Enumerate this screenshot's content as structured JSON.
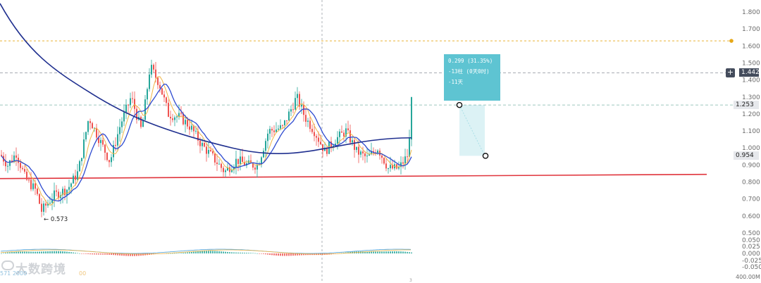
{
  "chart_data": {
    "type": "candlestick",
    "y_axis": {
      "range": [
        0.4,
        1.85
      ],
      "ticks": [
        "1.800",
        "1.700",
        "1.600",
        "1.500",
        "1.400",
        "1.300",
        "1.200",
        "1.100",
        "1.000",
        "0.900",
        "0.800",
        "0.700",
        "0.600",
        "0.500"
      ]
    },
    "macd_axis": {
      "ticks": [
        "0.050",
        "0.025",
        "0.000",
        "-0.025",
        "-0.050"
      ]
    },
    "volume_label": "400.00M",
    "price_tags": {
      "current_hline": "1.442",
      "measure_top": "1.253",
      "measure_bottom": "0.954"
    },
    "alert_level": 1.63,
    "support_line": {
      "from": 0.82,
      "to": 0.845
    },
    "low_marker": "← 0.573",
    "measure_tool": {
      "line1": "0.299 (31.35%)",
      "line2": "-13柱 (0天0时)",
      "line3": "-11天"
    },
    "colors": {
      "up": "#26a69a",
      "down": "#ef5350",
      "ma_slow": "#1f2f8f",
      "ma_fast": "#f0b545",
      "support": "#e0343c",
      "alert": "#e6a817",
      "measure": "#5ec4d2"
    },
    "watermark": "大数跨境",
    "indicator_text_left": "571 2000",
    "indicator_text_right": "00"
  },
  "icons": {
    "add": "plus-icon"
  }
}
